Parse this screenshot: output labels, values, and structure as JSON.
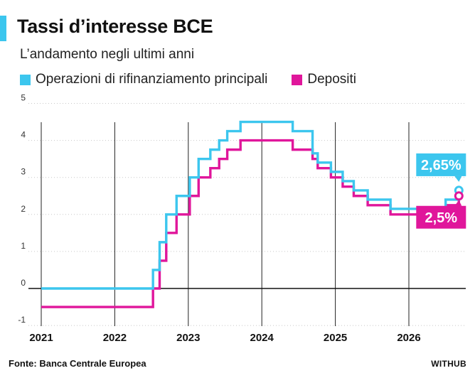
{
  "header": {
    "title": "Tassi d’interesse BCE",
    "subtitle": "L’andamento negli ultimi anni"
  },
  "footer": {
    "source": "Fonte: Banca Centrale Europea",
    "brand": "WITHUB"
  },
  "colors": {
    "accent": "#3cc6ee",
    "mro": "#3cc6ee",
    "deposit": "#e0169b"
  },
  "chart_data": {
    "type": "line",
    "step": true,
    "x_ticks": [
      "2021",
      "2022",
      "2023",
      "2024",
      "2025",
      "2026"
    ],
    "y_ticks": [
      "-1",
      "0",
      "1",
      "2",
      "3",
      "4",
      "5"
    ],
    "xlim": [
      2021.0,
      2026.7
    ],
    "ylim": [
      -1,
      5
    ],
    "grid": "horizontal dotted",
    "legend_position": "top-left",
    "series": [
      {
        "name": "Operazioni di rifinanziamento principali",
        "color": "#3cc6ee",
        "end_label": "2,65%",
        "x": [
          2021.0,
          2022.3,
          2022.52,
          2022.61,
          2022.7,
          2022.84,
          2023.02,
          2023.14,
          2023.3,
          2023.42,
          2023.53,
          2023.71,
          2024.42,
          2024.69,
          2024.76,
          2024.94,
          2025.1,
          2025.25,
          2025.44,
          2025.75,
          2026.5,
          2026.68
        ],
        "y": [
          0.0,
          0.0,
          0.5,
          1.25,
          2.0,
          2.5,
          3.0,
          3.5,
          3.75,
          4.0,
          4.25,
          4.5,
          4.25,
          3.65,
          3.4,
          3.15,
          2.9,
          2.65,
          2.4,
          2.15,
          2.4,
          2.65
        ]
      },
      {
        "name": "Depositi",
        "color": "#e0169b",
        "end_label": "2,5%",
        "x": [
          2021.0,
          2022.3,
          2022.52,
          2022.61,
          2022.7,
          2022.84,
          2023.02,
          2023.14,
          2023.3,
          2023.42,
          2023.53,
          2023.71,
          2024.42,
          2024.69,
          2024.76,
          2024.94,
          2025.1,
          2025.25,
          2025.44,
          2025.75,
          2026.5,
          2026.68
        ],
        "y": [
          -0.5,
          -0.5,
          0.0,
          0.75,
          1.5,
          2.0,
          2.5,
          3.0,
          3.25,
          3.5,
          3.75,
          4.0,
          3.75,
          3.5,
          3.25,
          3.0,
          2.75,
          2.5,
          2.25,
          2.0,
          2.25,
          2.5
        ]
      }
    ]
  }
}
